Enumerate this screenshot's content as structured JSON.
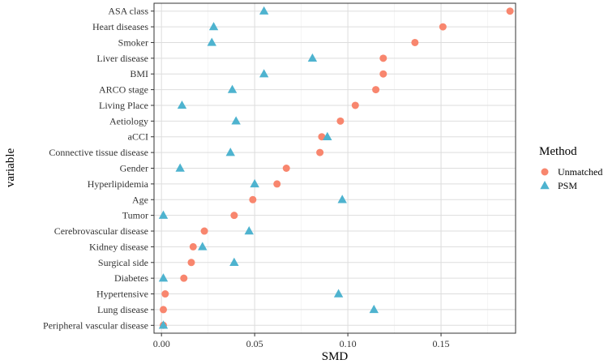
{
  "chart_data": {
    "type": "scatter",
    "title": "",
    "xlabel": "SMD",
    "ylabel": "variable",
    "xlim": [
      -0.004,
      0.19
    ],
    "grid": true,
    "x_ticks": [
      0.0,
      0.05,
      0.1,
      0.15
    ],
    "x_tick_labels": [
      "0.00",
      "0.05",
      "0.10",
      "0.15"
    ],
    "legend": {
      "title": "Method",
      "position": "right"
    },
    "categories": [
      "ASA class",
      "Heart diseases",
      "Smoker",
      "Liver disease",
      "BMI",
      "ARCO stage",
      "Living Place",
      "Aetiology",
      "aCCI",
      "Connective tissue disease",
      "Gender",
      "Hyperlipidemia",
      "Age",
      "Tumor",
      "Cerebrovascular disease",
      "Kidney disease",
      "Surgical side",
      "Diabetes",
      "Hypertensive",
      "Lung disease",
      "Peripheral vascular disease"
    ],
    "series": [
      {
        "name": "Unmatched",
        "marker": "circle",
        "color": "#F8866E",
        "values": [
          0.187,
          0.151,
          0.136,
          0.119,
          0.119,
          0.115,
          0.104,
          0.096,
          0.086,
          0.085,
          0.067,
          0.062,
          0.049,
          0.039,
          0.023,
          0.017,
          0.016,
          0.012,
          0.002,
          0.001,
          0.001
        ]
      },
      {
        "name": "PSM",
        "marker": "triangle",
        "color": "#4EB3CF",
        "values": [
          0.055,
          0.028,
          0.027,
          0.081,
          0.055,
          0.038,
          0.011,
          0.04,
          0.089,
          0.037,
          0.01,
          0.05,
          0.097,
          0.001,
          0.047,
          0.022,
          0.039,
          0.001,
          0.095,
          0.114,
          0.001
        ]
      }
    ]
  }
}
